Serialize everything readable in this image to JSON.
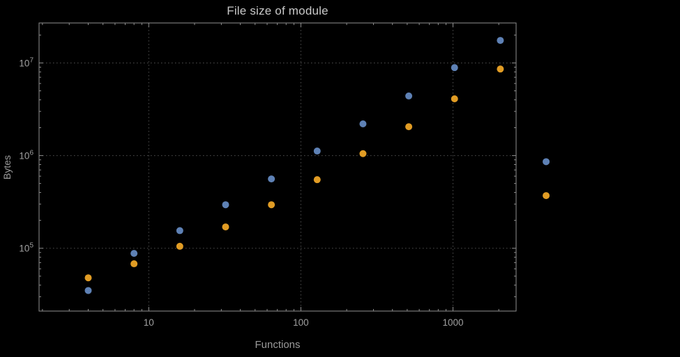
{
  "chart_data": {
    "type": "scatter",
    "title": "File size of module",
    "xlabel": "Functions",
    "ylabel": "Bytes",
    "x_scale": "log",
    "y_scale": "log",
    "xlim": [
      1.9,
      2600
    ],
    "ylim": [
      21000,
      27000000
    ],
    "grid": "dotted",
    "legend": "none",
    "frame": true,
    "plot_range_clipping": false,
    "x": [
      4,
      8,
      16,
      32,
      64,
      128,
      256,
      512,
      1024,
      2048,
      4096
    ],
    "series": [
      {
        "name": "blue-series",
        "color": "#5E81B5",
        "values": [
          35000,
          88000,
          155000,
          295000,
          560000,
          1120000,
          2200000,
          4400000,
          8900000,
          17500000,
          860000
        ]
      },
      {
        "name": "orange-series",
        "color": "#E19C24",
        "values": [
          48000,
          68000,
          105000,
          170000,
          295000,
          550000,
          1050000,
          2050000,
          4100000,
          8600000,
          370000
        ]
      }
    ],
    "x_ticks": [
      {
        "value": 10,
        "label": "10"
      },
      {
        "value": 100,
        "label": "100"
      },
      {
        "value": 1000,
        "label": "1000"
      }
    ],
    "y_ticks": [
      {
        "value": 100000,
        "label": "10^5"
      },
      {
        "value": 1000000,
        "label": "10^6"
      },
      {
        "value": 10000000,
        "label": "10^7"
      }
    ],
    "colors": {
      "background": "#000000",
      "frame": "#8f8f8f",
      "grid": "#515151",
      "tick_text": "#a0a0a0",
      "title_text": "#c9c9c9"
    },
    "point_radius": 5
  }
}
